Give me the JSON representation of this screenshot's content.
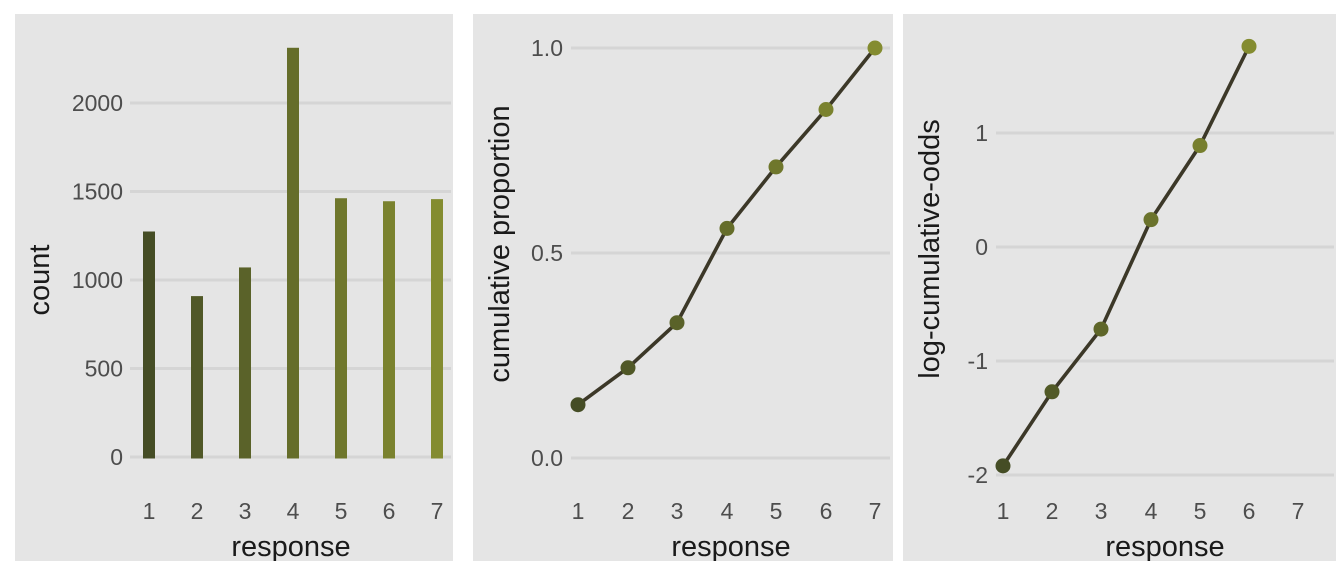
{
  "figure": {
    "background_color": "#ffffff",
    "panel_background_color": "#e5e5e5",
    "gridline_color": "#d5d5d5",
    "line_color": "#3c3828",
    "tick_label_color": "#4d4d4d",
    "axis_title_color": "#1a1a1a",
    "color_gradient": {
      "dark": "#454d25",
      "light": "#848c30"
    }
  },
  "chart_data": [
    {
      "type": "bar",
      "title": "",
      "xlabel": "response",
      "ylabel": "count",
      "categories": [
        "1",
        "2",
        "3",
        "4",
        "5",
        "6",
        "7"
      ],
      "values": [
        1274,
        909,
        1071,
        2312,
        1462,
        1445,
        1457
      ],
      "ytick_values": [
        0,
        500,
        1000,
        1500,
        2000
      ],
      "ytick_labels": [
        "0",
        "500",
        "1000",
        "1500",
        "2000"
      ],
      "ylim": [
        0,
        2370
      ],
      "grid": "horizontal-major-only",
      "legend": "none",
      "bar_colors": [
        "#454d25",
        "#505827",
        "#5a6229",
        "#656d2a",
        "#6f772c",
        "#7a822e",
        "#848c30"
      ]
    },
    {
      "type": "line",
      "title": "",
      "xlabel": "response",
      "ylabel": "cumulative proportion",
      "x": [
        1,
        2,
        3,
        4,
        5,
        6,
        7
      ],
      "xtick_labels": [
        "1",
        "2",
        "3",
        "4",
        "5",
        "6",
        "7"
      ],
      "values": [
        0.13,
        0.22,
        0.33,
        0.56,
        0.71,
        0.85,
        1.0
      ],
      "ytick_values": [
        0.0,
        0.5,
        1.0
      ],
      "ytick_labels": [
        "0.0",
        "0.5",
        "1.0"
      ],
      "ylim": [
        0.0,
        1.03
      ],
      "grid": "horizontal-major-only",
      "legend": "none",
      "marker": "filled-circle",
      "point_colors": [
        "#454d25",
        "#505827",
        "#5a6229",
        "#656d2a",
        "#6f772c",
        "#7a822e",
        "#848c30"
      ]
    },
    {
      "type": "line",
      "title": "",
      "xlabel": "response",
      "ylabel": "log-cumulative-odds",
      "x": [
        1,
        2,
        3,
        4,
        5,
        6
      ],
      "xtick_labels": [
        "1",
        "2",
        "3",
        "4",
        "5",
        "6",
        "7"
      ],
      "values": [
        -1.92,
        -1.27,
        -0.72,
        0.24,
        0.89,
        1.76
      ],
      "ytick_values": [
        -2,
        -1,
        0,
        1
      ],
      "ytick_labels": [
        "-2",
        "-1",
        "0",
        "1"
      ],
      "ylim": [
        -2.05,
        1.92
      ],
      "grid": "horizontal-major-only",
      "legend": "none",
      "marker": "filled-circle",
      "note_missing_point": "response 7 omitted (log-cumulative-odds is infinite)",
      "point_colors": [
        "#454d25",
        "#525a27",
        "#5e6629",
        "#6b732c",
        "#777f2e",
        "#848c30"
      ]
    }
  ]
}
